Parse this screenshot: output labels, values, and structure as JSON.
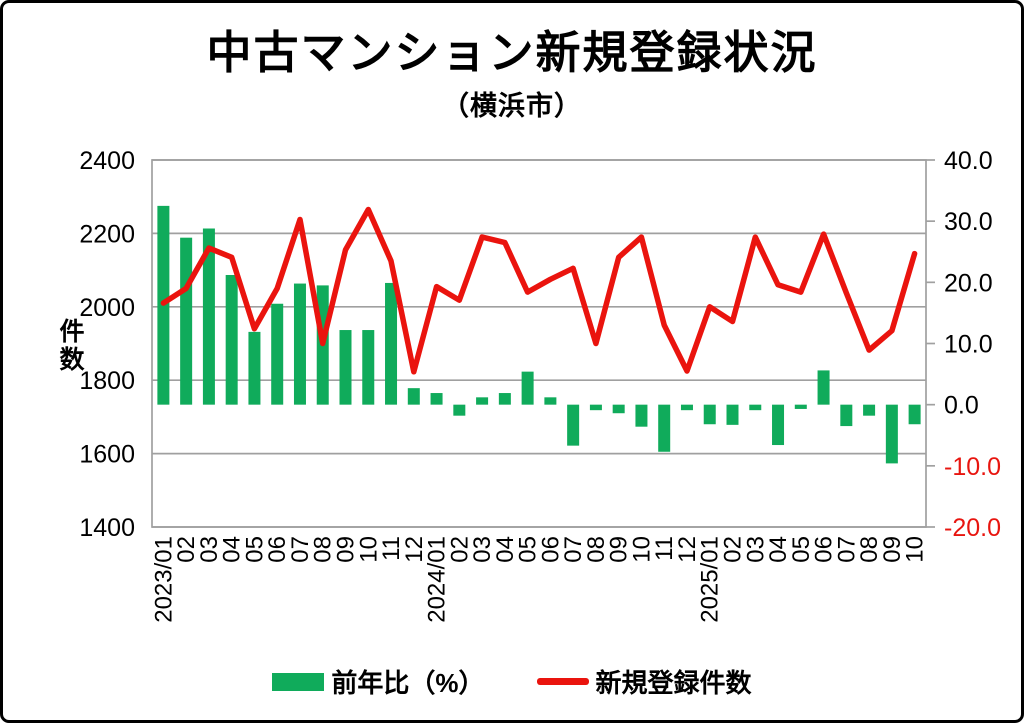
{
  "header": {
    "title": "中古マンション新規登録状況",
    "subtitle": "（横浜市）"
  },
  "legend": {
    "items": [
      {
        "label": "前年比（%）",
        "type": "bar"
      },
      {
        "label": "新規登録件数",
        "type": "line"
      }
    ]
  },
  "chart_data": {
    "type": "combo",
    "categories": [
      "2023/01",
      "02",
      "03",
      "04",
      "05",
      "06",
      "07",
      "08",
      "09",
      "10",
      "11",
      "12",
      "2024/01",
      "02",
      "03",
      "04",
      "05",
      "06",
      "07",
      "08",
      "09",
      "10",
      "11",
      "12",
      "2025/01",
      "02",
      "03",
      "04",
      "05",
      "06",
      "07",
      "08",
      "09",
      "10"
    ],
    "series": [
      {
        "name": "前年比（%）",
        "type": "bar",
        "axis": "right",
        "color": "#10ab5b",
        "values": [
          32.5,
          27.3,
          28.8,
          21.2,
          11.9,
          16.5,
          19.8,
          19.5,
          12.2,
          12.2,
          19.9,
          2.7,
          1.9,
          -1.8,
          1.2,
          1.9,
          5.4,
          1.2,
          -6.7,
          -0.9,
          -1.4,
          -3.6,
          -7.7,
          -0.9,
          -3.2,
          -3.3,
          -0.9,
          -6.6,
          -0.7,
          5.6,
          -3.5,
          -1.8,
          -9.6,
          -3.2
        ]
      },
      {
        "name": "新規登録件数",
        "type": "line",
        "axis": "left",
        "color": "#ea140e",
        "values": [
          2010,
          2050,
          2160,
          2135,
          1940,
          2050,
          2238,
          1900,
          2155,
          2265,
          2125,
          1823,
          2055,
          2018,
          2190,
          2175,
          2040,
          2075,
          2105,
          1900,
          2135,
          2190,
          1950,
          1825,
          2000,
          1960,
          2190,
          2060,
          2040,
          2198,
          2038,
          1882,
          1935,
          2145
        ]
      }
    ],
    "left_axis": {
      "label": "件数",
      "min": 1400,
      "max": 2400,
      "ticks": [
        "2400",
        "2200",
        "2000",
        "1800",
        "1600",
        "1400"
      ]
    },
    "right_axis": {
      "min": -20,
      "max": 40,
      "ticks": [
        "40.0",
        "30.0",
        "20.0",
        "10.0",
        "0.0",
        "-10.0",
        "-20.0"
      ],
      "negative_label_color": "#e8150f"
    },
    "style": {
      "grid_color": "#a0a0a0",
      "axis_text_color": "#000000",
      "background": "#ffffff"
    },
    "grid": "horizontal lines at left-axis ticks",
    "legend_position": "bottom"
  }
}
